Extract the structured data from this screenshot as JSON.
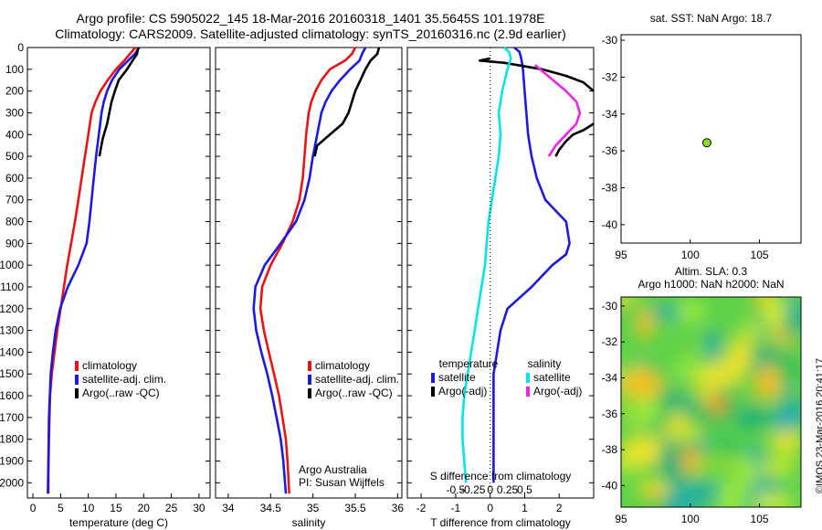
{
  "header": {
    "title_line1": "Argo profile: CS 5905022_145 18-Mar-2016 20160318_1401 35.5645S 101.1978E",
    "title_line2": "Climatology: CARS2009. Satellite-adjusted climatology: synTS_20160316.nc (2.9d earlier)"
  },
  "credit": "©IMOS 23-Mar-2016 20:41:17",
  "colors": {
    "climatology": "#ee1111",
    "satellite": "#1a1ae0",
    "argo": "#000000",
    "sat_sal": "#00e5ee",
    "argo_sal": "#ee22ee",
    "marker": "#88dd22"
  },
  "chart_data": [
    {
      "type": "line",
      "name": "temperature-profile",
      "xlabel": "temperature (deg C)",
      "xlim": [
        -1,
        32
      ],
      "xticks": [
        0,
        5,
        10,
        15,
        20,
        25,
        30
      ],
      "ylim": [
        2070,
        0
      ],
      "yticks": [
        0,
        100,
        200,
        300,
        400,
        500,
        600,
        700,
        800,
        900,
        1000,
        1100,
        1200,
        1300,
        1400,
        1500,
        1600,
        1700,
        1800,
        1900,
        2000
      ],
      "legend": [
        "climatology",
        "satellite-adj. clim.",
        "Argo(..raw -QC)"
      ],
      "series": [
        {
          "name": "climatology",
          "color": "#ee1111",
          "x": [
            18.5,
            17.5,
            16.5,
            15,
            13.5,
            12.2,
            11.3,
            10.6,
            10,
            9.4,
            8.8,
            8.2,
            7.6,
            6.9,
            6.2,
            5.6,
            5,
            4.4,
            3.9,
            3.4,
            3.1,
            2.9,
            2.8,
            2.8
          ],
          "y": [
            0,
            30,
            60,
            100,
            150,
            200,
            250,
            300,
            400,
            500,
            600,
            700,
            800,
            900,
            1000,
            1100,
            1200,
            1300,
            1400,
            1500,
            1600,
            1800,
            1950,
            2050
          ]
        },
        {
          "name": "satellite-adj. clim.",
          "color": "#1a1ae0",
          "x": [
            19.2,
            18.4,
            17.2,
            15.6,
            14.3,
            13.4,
            12.8,
            12.4,
            11.9,
            11.4,
            11,
            10.6,
            10.2,
            9.7,
            8.2,
            6.3,
            4.9,
            4.1,
            3.6,
            3.2,
            2.9,
            2.8,
            2.7
          ],
          "y": [
            0,
            30,
            60,
            100,
            150,
            200,
            250,
            300,
            400,
            500,
            600,
            700,
            800,
            900,
            1000,
            1100,
            1200,
            1300,
            1400,
            1500,
            1700,
            1900,
            2050
          ]
        },
        {
          "name": "Argo(..raw -QC)",
          "color": "#000000",
          "x": [
            19,
            18.8,
            18,
            17,
            15.5,
            14.8,
            14.2,
            13.8,
            13.4,
            12.6,
            12
          ],
          "y": [
            0,
            30,
            60,
            100,
            150,
            200,
            250,
            300,
            350,
            420,
            500
          ]
        }
      ]
    },
    {
      "type": "line",
      "name": "salinity-profile",
      "xlabel": "salinity",
      "xlim": [
        33.85,
        36.05
      ],
      "xticks": [
        34,
        34.5,
        35,
        35.5,
        36
      ],
      "xticklabels": [
        "34",
        "34.5",
        "35",
        "35.5",
        "36"
      ],
      "ylim": [
        2070,
        0
      ],
      "legend": [
        "climatology",
        "satellite-adj. clim.",
        "Argo(..raw -QC)"
      ],
      "annotation": [
        "Argo Australia",
        "PI: Susan Wijffels"
      ],
      "series": [
        {
          "name": "climatology",
          "color": "#ee1111",
          "x": [
            35.5,
            35.46,
            35.38,
            35.2,
            35.1,
            35.03,
            34.98,
            34.95,
            34.92,
            34.9,
            34.88,
            34.84,
            34.76,
            34.64,
            34.5,
            34.4,
            34.38,
            34.42,
            34.48,
            34.54,
            34.6,
            34.64,
            34.68,
            34.7,
            34.72
          ],
          "y": [
            0,
            30,
            60,
            100,
            150,
            200,
            250,
            300,
            400,
            500,
            600,
            700,
            800,
            900,
            1000,
            1100,
            1200,
            1300,
            1400,
            1500,
            1600,
            1700,
            1800,
            1900,
            2050
          ]
        },
        {
          "name": "satellite-adj. clim.",
          "color": "#1a1ae0",
          "x": [
            35.62,
            35.58,
            35.55,
            35.44,
            35.32,
            35.22,
            35.15,
            35.1,
            35.05,
            35.0,
            34.96,
            34.9,
            34.8,
            34.62,
            34.43,
            34.32,
            34.3,
            34.33,
            34.39,
            34.46,
            34.52,
            34.57,
            34.62,
            34.65,
            34.68
          ],
          "y": [
            0,
            30,
            60,
            100,
            150,
            200,
            250,
            300,
            400,
            500,
            600,
            700,
            800,
            900,
            1000,
            1100,
            1200,
            1300,
            1400,
            1500,
            1600,
            1700,
            1800,
            1900,
            2050
          ]
        },
        {
          "name": "Argo(..raw -QC)",
          "color": "#000000",
          "x": [
            35.78,
            35.76,
            35.68,
            35.62,
            35.56,
            35.5,
            35.46,
            35.42,
            35.35,
            35.2,
            35.05,
            35.02
          ],
          "y": [
            0,
            30,
            60,
            100,
            150,
            200,
            250,
            300,
            350,
            400,
            450,
            500
          ]
        }
      ]
    },
    {
      "type": "line",
      "name": "difference-profile",
      "xlabel": "T difference from climatology",
      "xlim": [
        -2.4,
        3.0
      ],
      "xticks": [
        -2,
        -1,
        0,
        1,
        2
      ],
      "sticks": [
        -0.5,
        -0.25,
        0,
        0.25,
        0.5
      ],
      "slabel": "S difference from climatology",
      "ylim": [
        2070,
        0
      ],
      "legend_titles": [
        "temperature",
        "salinity"
      ],
      "legend": [
        "satellite",
        "Argo(-adj)",
        "satellite",
        "Argo(-adj)"
      ],
      "series": [
        {
          "name": "T satellite",
          "color": "#1a1ae0",
          "x": [
            0.7,
            0.85,
            0.9,
            0.95,
            1.0,
            1.05,
            1.1,
            1.2,
            1.35,
            1.6,
            1.9,
            2.2,
            2.3,
            2.2,
            1.8,
            1.2,
            0.5,
            0.3,
            0.2,
            0.1,
            0.1,
            0.1,
            0.1
          ],
          "y": [
            0,
            20,
            50,
            100,
            200,
            300,
            400,
            500,
            600,
            700,
            750,
            800,
            900,
            950,
            1000,
            1100,
            1200,
            1300,
            1400,
            1500,
            1700,
            1900,
            2000
          ]
        },
        {
          "name": "T Argo(-adj)",
          "color": "#000000",
          "x": [
            0.0,
            -0.3,
            0.4,
            1.5,
            2.2,
            2.7,
            3.1
          ],
          "y": [
            50,
            60,
            70,
            100,
            130,
            160,
            200
          ]
        },
        {
          "name": "S satellite",
          "color": "#00e5ee",
          "x": [
            0.4,
            0.55,
            0.6,
            0.5,
            0.35,
            0.25,
            0.3,
            0.25,
            0.15,
            0.05,
            -0.05,
            -0.1,
            -0.15,
            -0.25,
            -0.35,
            -0.45,
            -0.55,
            -0.65,
            -0.75,
            -0.8,
            -0.8,
            -0.75,
            -0.7
          ],
          "y": [
            0,
            20,
            50,
            100,
            200,
            300,
            400,
            500,
            600,
            700,
            800,
            900,
            1000,
            1100,
            1200,
            1300,
            1400,
            1500,
            1600,
            1700,
            1800,
            1900,
            2000
          ]
        },
        {
          "name": "S Argo(-adj)",
          "color": "#ee22ee",
          "x": [
            1.3,
            1.6,
            1.9,
            2.2,
            2.5,
            2.6,
            2.5,
            2.2,
            1.9,
            1.7
          ],
          "y": [
            80,
            120,
            160,
            200,
            250,
            300,
            350,
            400,
            450,
            500
          ]
        },
        {
          "name": "Argo deep segment",
          "color": "#000000",
          "x": [
            3.0,
            2.7,
            2.4,
            2.2,
            2.0,
            1.9
          ],
          "y": [
            350,
            380,
            400,
            430,
            470,
            500
          ]
        }
      ]
    },
    {
      "type": "scatter",
      "name": "location-map",
      "title": "sat. SST: NaN Argo: 18.7",
      "xlim": [
        95,
        108
      ],
      "xticks": [
        95,
        100,
        105
      ],
      "ylim": [
        -41,
        -29.7
      ],
      "yticks": [
        -30,
        -32,
        -34,
        -36,
        -38,
        -40
      ],
      "points": [
        {
          "x": 101.2,
          "y": -35.56
        }
      ]
    },
    {
      "type": "heatmap",
      "name": "altimetry-map",
      "title": [
        "Altim. SLA: 0.3",
        "Argo h1000: NaN h2000: NaN"
      ],
      "xlim": [
        95,
        108
      ],
      "xticks": [
        95,
        100,
        105
      ],
      "ylim": [
        -41.2,
        -29.5
      ],
      "yticks": [
        -30,
        -32,
        -34,
        -36,
        -38,
        -40
      ]
    }
  ]
}
